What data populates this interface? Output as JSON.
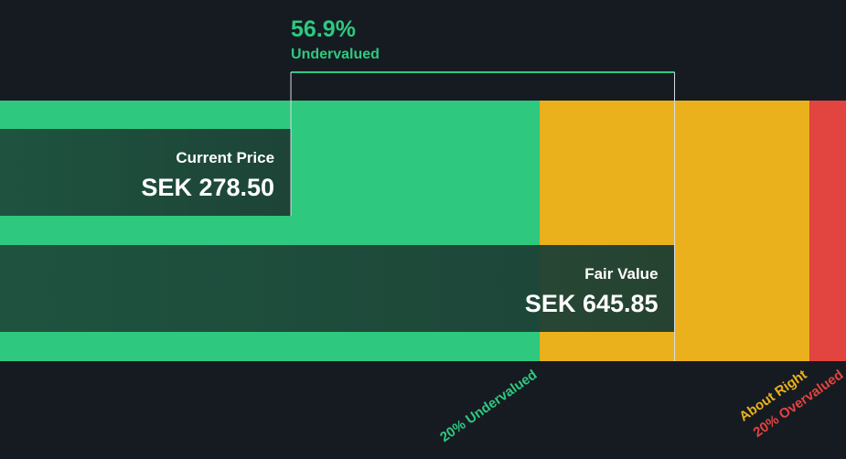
{
  "colors": {
    "background": "#161b22",
    "undervalued": "#2ec97f",
    "about_right": "#ebb11d",
    "overvalued": "#e2443f",
    "price_bar": "#1e4d3c",
    "text_primary": "#ffffff",
    "text_accent": "#2ec97f"
  },
  "chart_data": {
    "type": "bar",
    "currency": "SEK",
    "scale_max": 810,
    "zones": [
      {
        "name": "20% Undervalued",
        "from": 0,
        "to": 516.68,
        "color": "#2ec97f"
      },
      {
        "name": "About Right",
        "from": 516.68,
        "to": 775.02,
        "color": "#ebb11d"
      },
      {
        "name": "20% Overvalued",
        "from": 775.02,
        "to": 810,
        "color": "#e2443f"
      }
    ],
    "bars": [
      {
        "label": "Current Price",
        "value": 278.5,
        "value_text": "SEK 278.50"
      },
      {
        "label": "Fair Value",
        "value": 645.85,
        "value_text": "SEK 645.85"
      }
    ],
    "difference": {
      "percent_text": "56.9%",
      "status": "Undervalued"
    }
  }
}
